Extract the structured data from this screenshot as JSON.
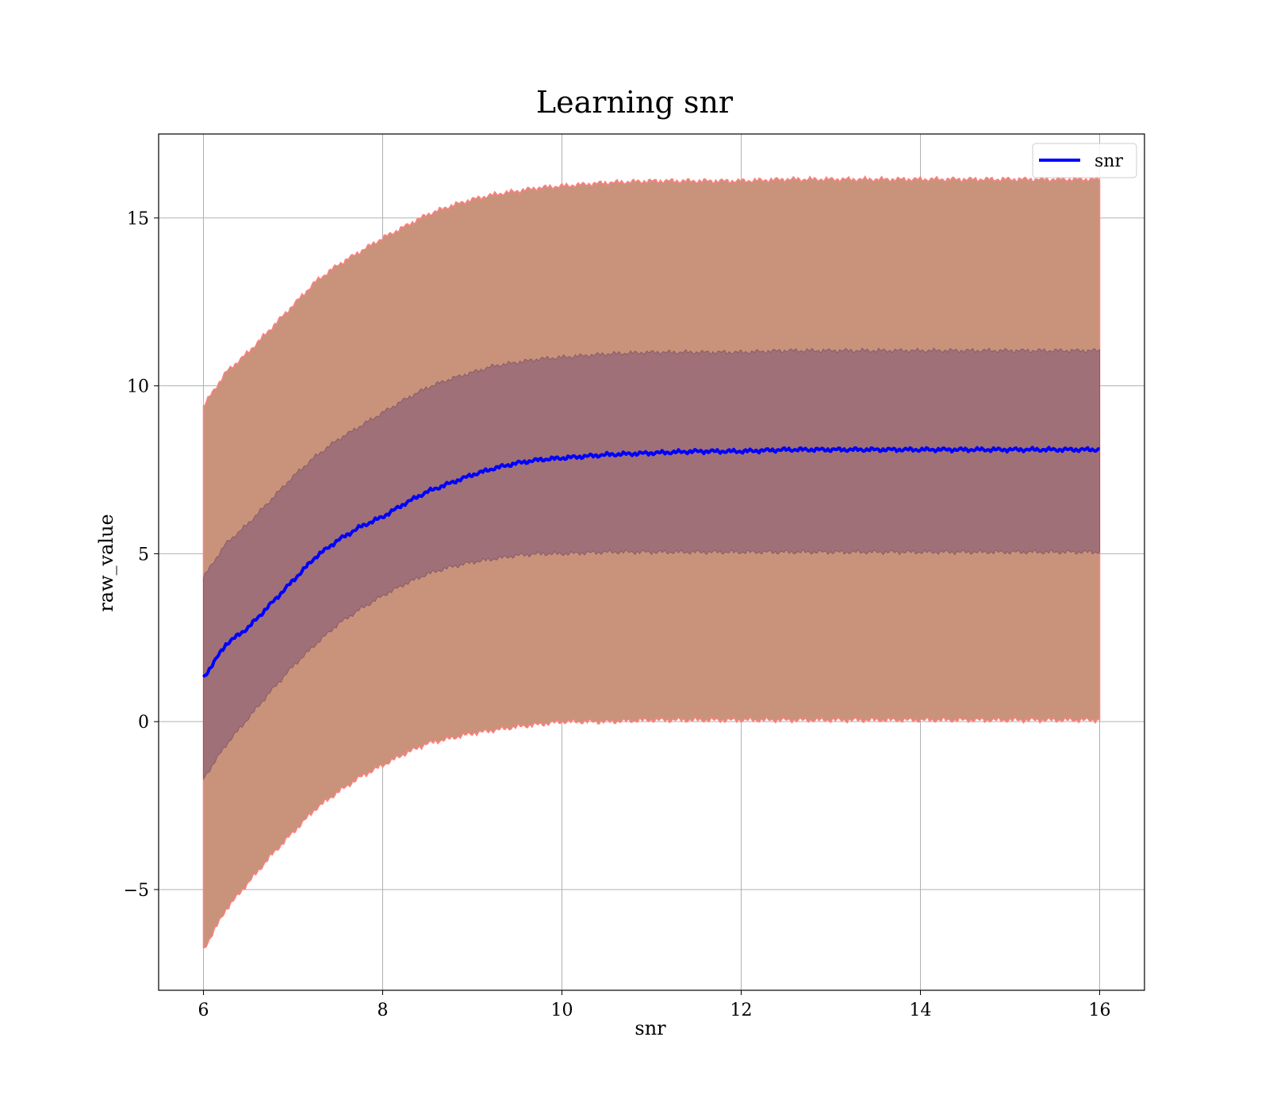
{
  "chart_data": {
    "type": "line",
    "title": "Learning snr",
    "xlabel": "snr",
    "ylabel": "raw_value",
    "xlim": [
      5.5,
      16.5
    ],
    "ylim": [
      -8,
      17.5
    ],
    "xticks": [
      6,
      8,
      10,
      12,
      14,
      16
    ],
    "yticks": [
      -5,
      0,
      5,
      10,
      15
    ],
    "ytick_labels": [
      "−5",
      "0",
      "5",
      "10",
      "15"
    ],
    "grid": true,
    "legend_position": "top-right",
    "colors": {
      "mean_line": "#0000ff",
      "outer_band": "#c8937a",
      "inner_band": "#a07078",
      "band_edge": "#ff8080",
      "grid": "#b0b0b0"
    },
    "series": [
      {
        "name": "snr",
        "x": [
          6.0,
          6.25,
          6.5,
          6.75,
          7.0,
          7.25,
          7.5,
          7.75,
          8.0,
          8.25,
          8.5,
          8.75,
          9.0,
          9.25,
          9.5,
          9.75,
          10.0,
          10.5,
          11.0,
          11.5,
          12.0,
          12.5,
          13.0,
          13.5,
          14.0,
          14.5,
          15.0,
          15.5,
          16.0
        ],
        "y": [
          1.3,
          2.3,
          2.8,
          3.5,
          4.2,
          4.9,
          5.4,
          5.8,
          6.1,
          6.5,
          6.85,
          7.1,
          7.35,
          7.55,
          7.7,
          7.8,
          7.85,
          7.95,
          8.0,
          8.05,
          8.05,
          8.1,
          8.1,
          8.1,
          8.1,
          8.1,
          8.1,
          8.1,
          8.1
        ],
        "inner_lower": [
          -1.7,
          -0.7,
          0.1,
          0.9,
          1.65,
          2.3,
          2.9,
          3.35,
          3.75,
          4.1,
          4.4,
          4.6,
          4.75,
          4.85,
          4.95,
          5.0,
          5.0,
          5.05,
          5.05,
          5.05,
          5.05,
          5.05,
          5.05,
          5.05,
          5.05,
          5.05,
          5.05,
          5.05,
          5.05
        ],
        "inner_upper": [
          4.3,
          5.3,
          5.9,
          6.6,
          7.3,
          7.9,
          8.4,
          8.8,
          9.2,
          9.6,
          9.95,
          10.2,
          10.4,
          10.6,
          10.7,
          10.8,
          10.85,
          10.95,
          11.0,
          11.0,
          11.0,
          11.05,
          11.05,
          11.05,
          11.05,
          11.05,
          11.05,
          11.05,
          11.05
        ],
        "outer_lower": [
          -6.8,
          -5.6,
          -4.8,
          -4.0,
          -3.3,
          -2.6,
          -2.1,
          -1.65,
          -1.3,
          -0.95,
          -0.65,
          -0.5,
          -0.35,
          -0.25,
          -0.15,
          -0.08,
          0.0,
          0.0,
          0.05,
          0.05,
          0.05,
          0.05,
          0.05,
          0.05,
          0.05,
          0.05,
          0.05,
          0.05,
          0.05
        ],
        "outer_upper": [
          9.4,
          10.4,
          11.0,
          11.7,
          12.4,
          13.1,
          13.6,
          14.0,
          14.4,
          14.75,
          15.1,
          15.35,
          15.55,
          15.7,
          15.8,
          15.9,
          15.95,
          16.05,
          16.1,
          16.1,
          16.1,
          16.15,
          16.15,
          16.15,
          16.15,
          16.15,
          16.15,
          16.15,
          16.15
        ]
      }
    ]
  }
}
